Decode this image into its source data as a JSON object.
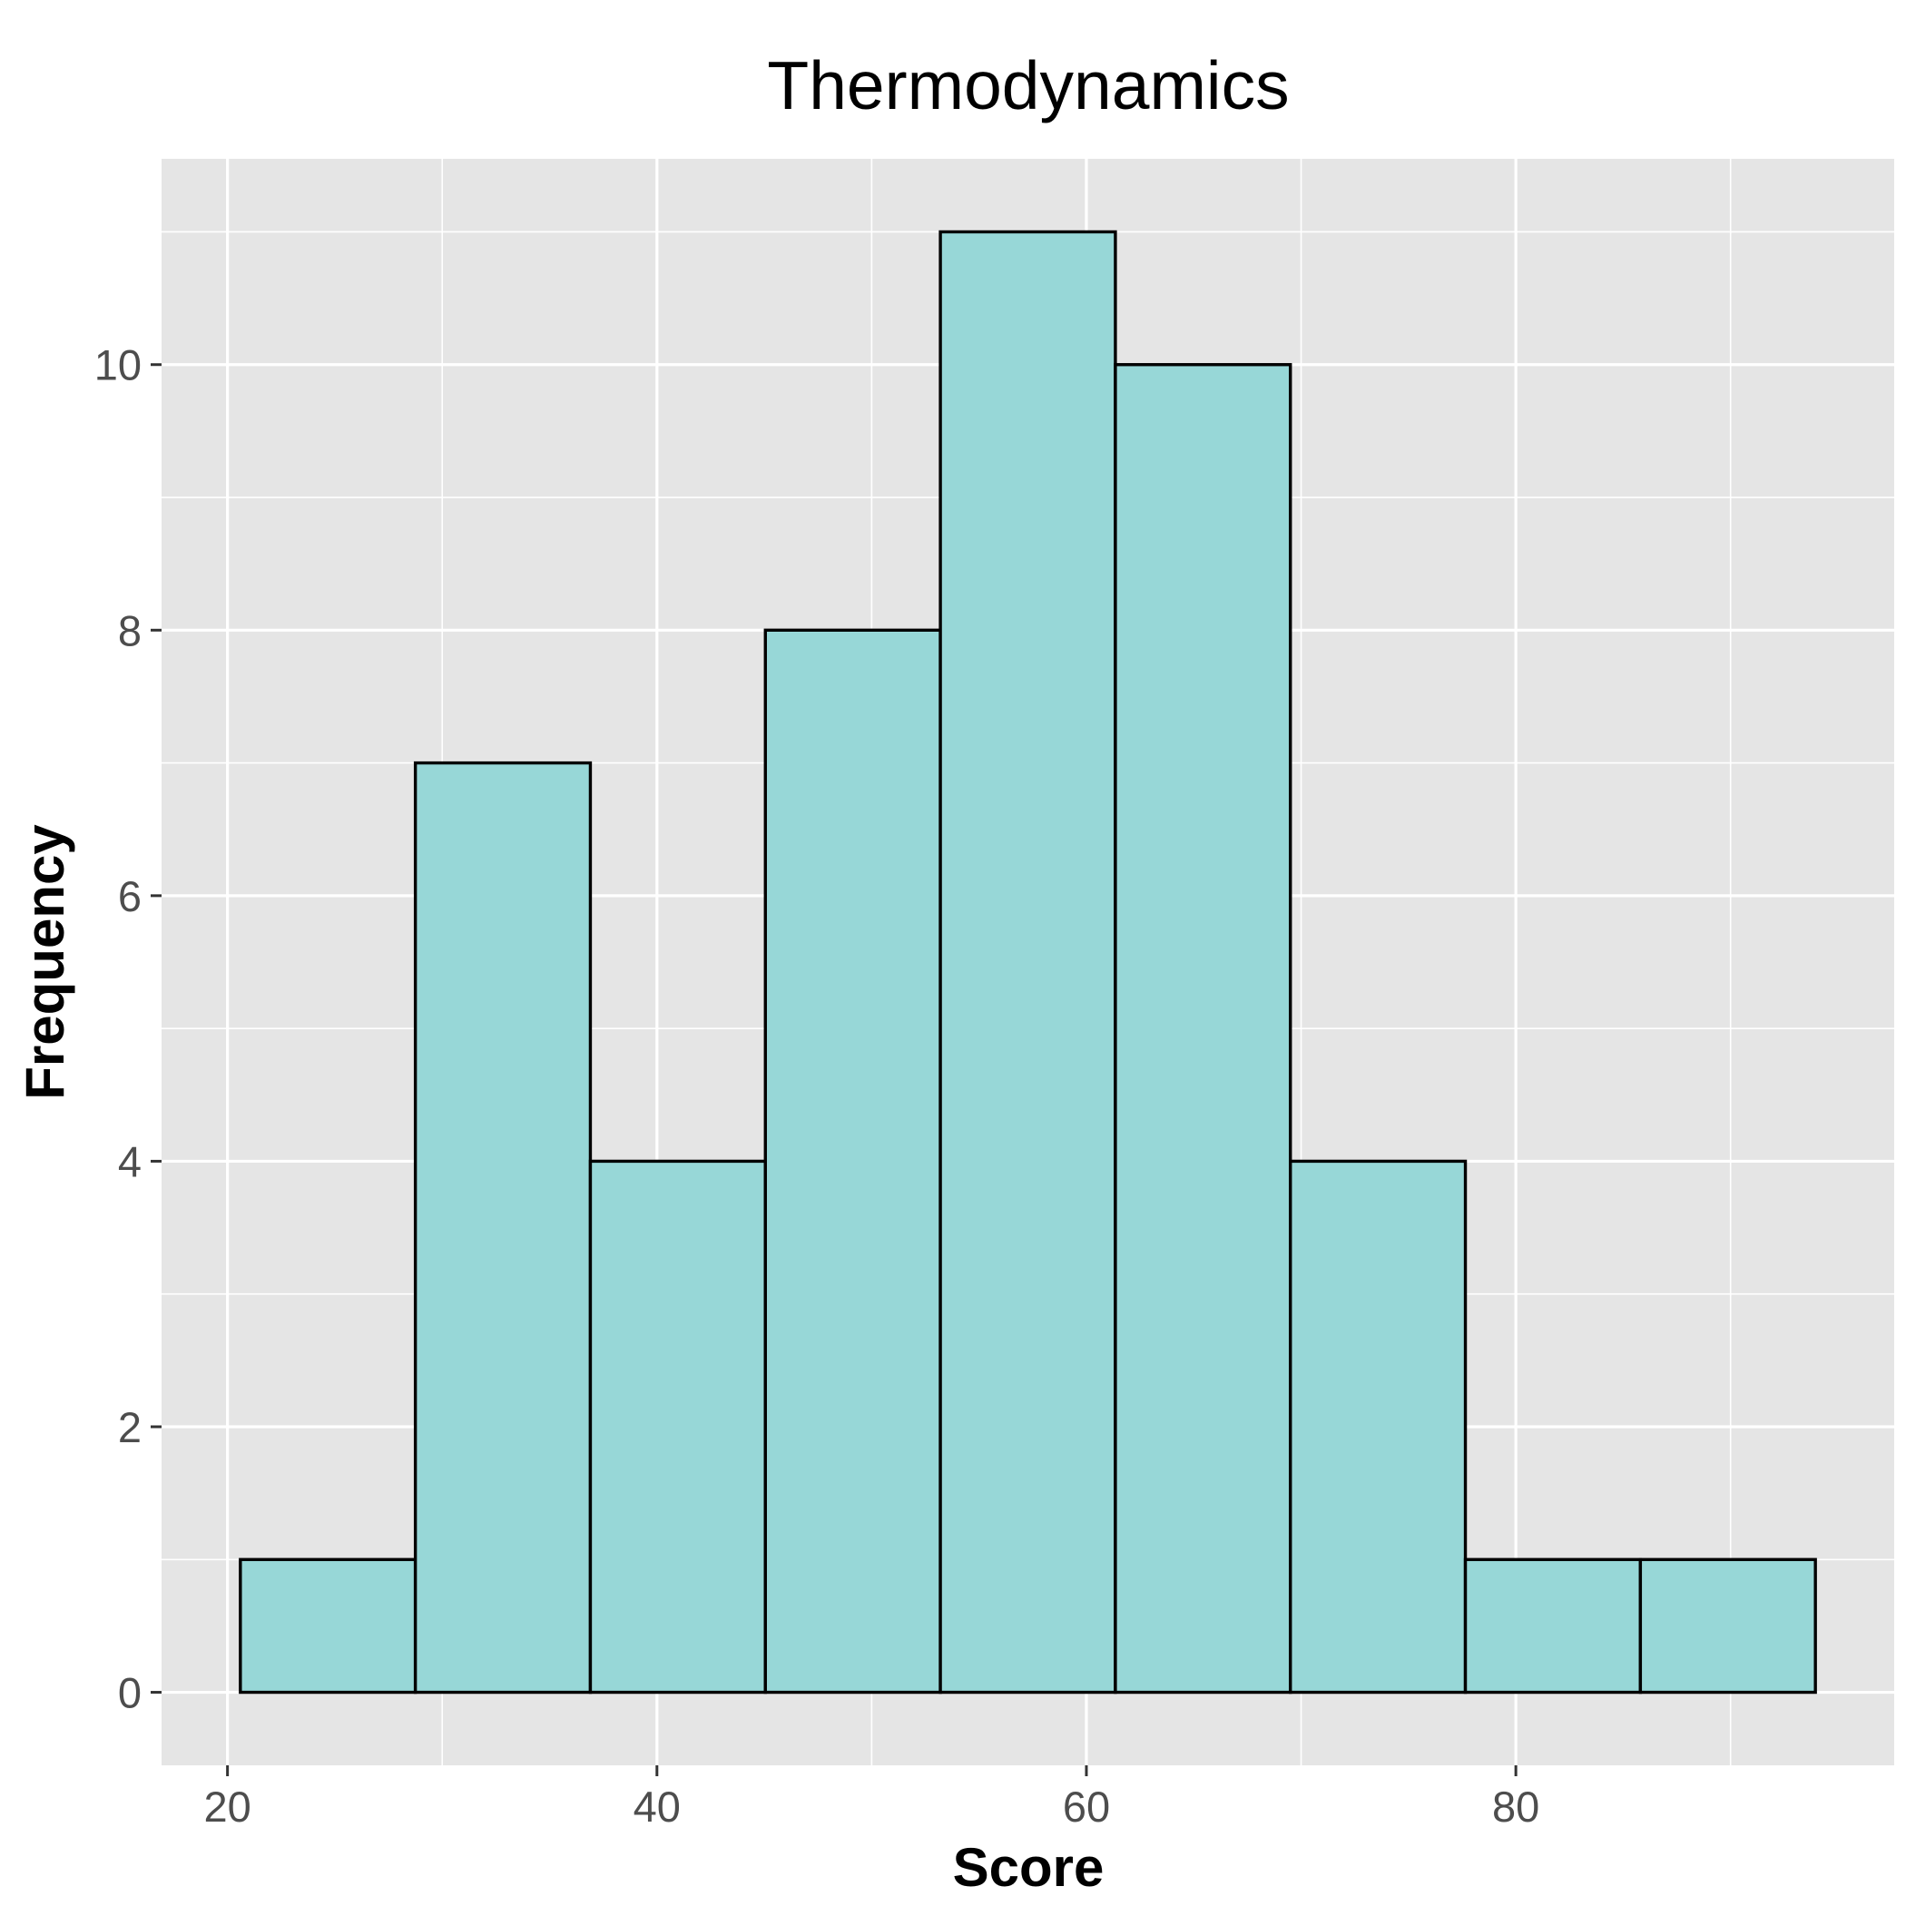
{
  "chart_data": {
    "type": "bar",
    "title": "Thermodynamics",
    "xlabel": "Score",
    "ylabel": "Frequency",
    "bins": [
      {
        "x0": 20.6,
        "x1": 28.75,
        "count": 1
      },
      {
        "x0": 28.75,
        "x1": 36.9,
        "count": 7
      },
      {
        "x0": 36.9,
        "x1": 45.05,
        "count": 4
      },
      {
        "x0": 45.05,
        "x1": 53.2,
        "count": 8
      },
      {
        "x0": 53.2,
        "x1": 61.35,
        "count": 11
      },
      {
        "x0": 61.35,
        "x1": 69.5,
        "count": 10
      },
      {
        "x0": 69.5,
        "x1": 77.65,
        "count": 4
      },
      {
        "x0": 77.65,
        "x1": 85.8,
        "count": 1
      },
      {
        "x0": 85.8,
        "x1": 93.95,
        "count": 1
      }
    ],
    "xlim": [
      16.93,
      97.62
    ],
    "ylim": [
      -0.55,
      11.55
    ],
    "x_ticks": [
      20,
      40,
      60,
      80
    ],
    "x_tick_labels": [
      "20",
      "40",
      "60",
      "80"
    ],
    "x_minor_ticks": [
      30,
      50,
      70,
      90
    ],
    "y_ticks": [
      0,
      2,
      4,
      6,
      8,
      10
    ],
    "y_tick_labels": [
      "0",
      "2",
      "4",
      "6",
      "8",
      "10"
    ],
    "y_minor_ticks": [
      1,
      3,
      5,
      7,
      9,
      11
    ],
    "grid": true,
    "legend": "none",
    "colors": {
      "bar_fill": "#97D7D7",
      "bar_stroke": "#000000",
      "panel_bg": "#E5E5E5",
      "grid": "#FFFFFF",
      "tick_text": "#4D4D4D",
      "tick_mark": "#333333"
    }
  }
}
